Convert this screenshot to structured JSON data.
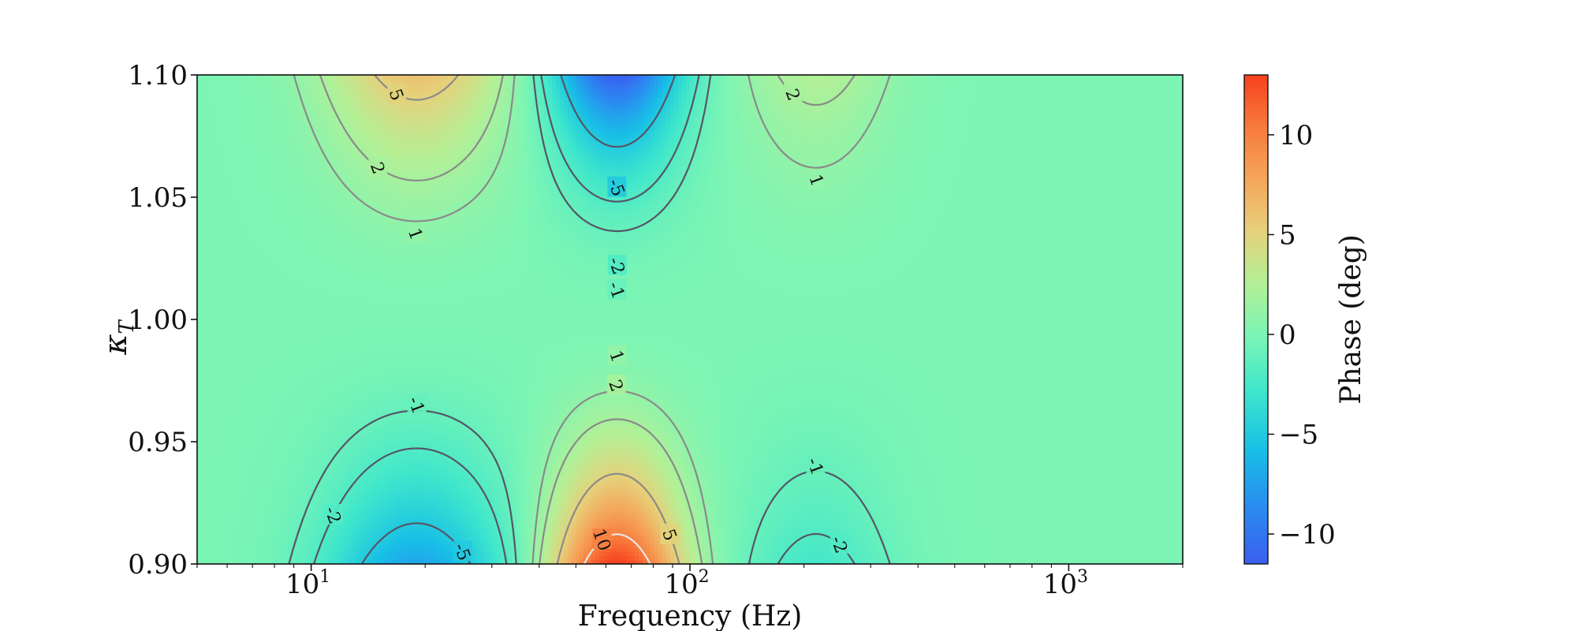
{
  "chart_data": {
    "type": "heatmap",
    "subtype": "filled-contour",
    "xlabel": "Frequency (Hz)",
    "ylabel": "κ_T",
    "ylabel_display": {
      "base": "κ",
      "subscript": "T"
    },
    "x_scale": "log",
    "xlim": [
      5,
      2000
    ],
    "ylim": [
      0.9,
      1.1
    ],
    "x_tick_labels": [
      {
        "value": 10,
        "base": "10",
        "exp": "1"
      },
      {
        "value": 100,
        "base": "10",
        "exp": "2"
      },
      {
        "value": 1000,
        "base": "10",
        "exp": "3"
      }
    ],
    "y_ticks": [
      0.9,
      0.95,
      1.0,
      1.05,
      1.1
    ],
    "y_tick_labels": [
      "0.90",
      "0.95",
      "1.00",
      "1.05",
      "1.10"
    ],
    "colorbar": {
      "label": "Phase (deg)",
      "range": [
        -11.5,
        13
      ],
      "ticks": [
        -10,
        -5,
        0,
        5,
        10
      ],
      "tick_labels": [
        "−10",
        "−5",
        "0",
        "5",
        "10"
      ],
      "colormap": [
        "#3a5ef0",
        "#2a8cf0",
        "#18c0e6",
        "#3ee6cc",
        "#7cf5b4",
        "#b4f096",
        "#e6d07a",
        "#f5a55a",
        "#f77a3c",
        "#f7401e"
      ]
    },
    "contour_levels": [
      -5,
      -2,
      -1,
      1,
      2,
      5,
      10
    ],
    "contour_labels_shown": [
      "-5",
      "-2",
      "-1",
      "1",
      "2",
      "5",
      "10"
    ],
    "features": [
      {
        "region": "upper-low-freq",
        "center_hz": 19,
        "sign": "positive",
        "peak_deg": 6
      },
      {
        "region": "upper-mid-freq",
        "center_hz": 65,
        "sign": "negative",
        "peak_deg": -11.5
      },
      {
        "region": "upper-high-freq",
        "center_hz": 210,
        "sign": "positive",
        "peak_deg": 2.5
      },
      {
        "region": "lower-low-freq",
        "center_hz": 21,
        "sign": "negative",
        "peak_deg": -7
      },
      {
        "region": "lower-mid-freq",
        "center_hz": 60,
        "sign": "positive",
        "peak_deg": 13
      },
      {
        "region": "lower-high-freq",
        "center_hz": 215,
        "sign": "negative",
        "peak_deg": -2.5
      }
    ],
    "grid": false,
    "legend": "none"
  }
}
